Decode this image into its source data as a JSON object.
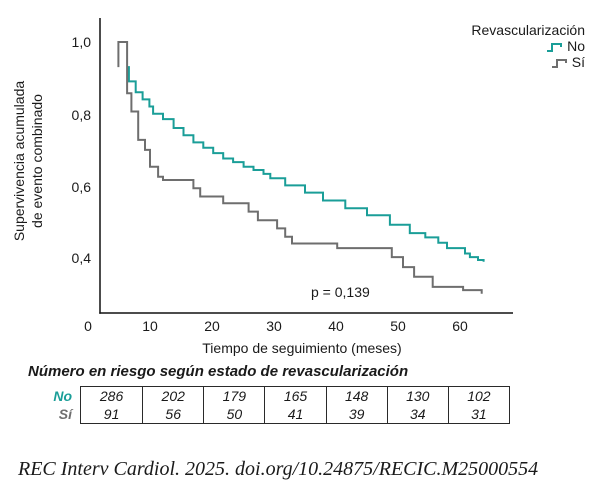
{
  "chart_data": {
    "type": "line",
    "subtype": "kaplan-meier-step",
    "xlabel": "Tiempo de seguimiento (meses)",
    "ylabel": "Supervivencia acumulada de evento combinado",
    "ylabel_lines": [
      "Supervivencia acumulada",
      "de evento combinado"
    ],
    "xlim": [
      0,
      68
    ],
    "ylim": [
      0.24,
      1.0
    ],
    "grid": false,
    "x_ticks": [
      0,
      10,
      20,
      30,
      40,
      50,
      60
    ],
    "x_tick_labels": [
      "0",
      "10",
      "20",
      "30",
      "40",
      "50",
      "60"
    ],
    "y_ticks": [
      1.0,
      0.8,
      0.6,
      0.4
    ],
    "y_tick_labels": [
      "1,0",
      "0,8",
      "0,6",
      "0,4"
    ],
    "legend": {
      "title": "Revascularización",
      "position": "top-right"
    },
    "annotation": "p = 0,139",
    "series": [
      {
        "name": "No",
        "color": "#1A9E98",
        "points": [
          [
            6.4,
            0.93
          ],
          [
            6.6,
            0.93
          ],
          [
            6.6,
            0.89
          ],
          [
            7.7,
            0.89
          ],
          [
            7.7,
            0.86
          ],
          [
            8.8,
            0.86
          ],
          [
            8.8,
            0.84
          ],
          [
            9.9,
            0.84
          ],
          [
            9.9,
            0.82
          ],
          [
            10.5,
            0.82
          ],
          [
            10.5,
            0.8
          ],
          [
            12.1,
            0.8
          ],
          [
            12.1,
            0.785
          ],
          [
            13.8,
            0.785
          ],
          [
            13.8,
            0.76
          ],
          [
            15.4,
            0.76
          ],
          [
            15.4,
            0.74
          ],
          [
            17,
            0.74
          ],
          [
            17,
            0.72
          ],
          [
            18.6,
            0.72
          ],
          [
            18.6,
            0.705
          ],
          [
            20.2,
            0.705
          ],
          [
            20.2,
            0.69
          ],
          [
            21.8,
            0.69
          ],
          [
            21.8,
            0.675
          ],
          [
            23.4,
            0.675
          ],
          [
            23.4,
            0.665
          ],
          [
            25.1,
            0.665
          ],
          [
            25.1,
            0.652
          ],
          [
            26.7,
            0.652
          ],
          [
            26.7,
            0.643
          ],
          [
            28.3,
            0.643
          ],
          [
            28.3,
            0.632
          ],
          [
            29.4,
            0.632
          ],
          [
            29.4,
            0.62
          ],
          [
            31.8,
            0.62
          ],
          [
            31.8,
            0.6
          ],
          [
            35,
            0.6
          ],
          [
            35,
            0.58
          ],
          [
            37.9,
            0.58
          ],
          [
            37.9,
            0.558
          ],
          [
            41.5,
            0.558
          ],
          [
            41.5,
            0.536
          ],
          [
            45,
            0.536
          ],
          [
            45,
            0.517
          ],
          [
            48.7,
            0.517
          ],
          [
            48.7,
            0.49
          ],
          [
            51.9,
            0.49
          ],
          [
            51.9,
            0.467
          ],
          [
            54.4,
            0.467
          ],
          [
            54.4,
            0.455
          ],
          [
            56.5,
            0.455
          ],
          [
            56.5,
            0.44
          ],
          [
            57.9,
            0.44
          ],
          [
            57.9,
            0.425
          ],
          [
            60.8,
            0.425
          ],
          [
            60.8,
            0.41
          ],
          [
            61.6,
            0.41
          ],
          [
            61.6,
            0.4
          ],
          [
            62.9,
            0.4
          ],
          [
            62.9,
            0.392
          ],
          [
            63.8,
            0.392
          ],
          [
            63.8,
            0.387
          ]
        ]
      },
      {
        "name": "Sí",
        "color": "#6E6E6E",
        "points": [
          [
            4.9,
            0.93
          ],
          [
            4.9,
            1.0
          ],
          [
            6.3,
            1.0
          ],
          [
            6.3,
            0.857
          ],
          [
            7,
            0.857
          ],
          [
            7,
            0.806
          ],
          [
            8.1,
            0.806
          ],
          [
            8.1,
            0.727
          ],
          [
            9.2,
            0.727
          ],
          [
            9.2,
            0.699
          ],
          [
            10,
            0.699
          ],
          [
            10,
            0.652
          ],
          [
            11.3,
            0.652
          ],
          [
            11.3,
            0.624
          ],
          [
            12.1,
            0.624
          ],
          [
            12.1,
            0.615
          ],
          [
            17,
            0.615
          ],
          [
            17,
            0.592
          ],
          [
            18.1,
            0.592
          ],
          [
            18.1,
            0.569
          ],
          [
            21.8,
            0.569
          ],
          [
            21.8,
            0.55
          ],
          [
            25.9,
            0.55
          ],
          [
            25.9,
            0.527
          ],
          [
            27.4,
            0.527
          ],
          [
            27.4,
            0.503
          ],
          [
            30.5,
            0.503
          ],
          [
            30.5,
            0.48
          ],
          [
            31.8,
            0.48
          ],
          [
            31.8,
            0.457
          ],
          [
            32.9,
            0.457
          ],
          [
            32.9,
            0.438
          ],
          [
            40.2,
            0.438
          ],
          [
            40.2,
            0.425
          ],
          [
            49,
            0.425
          ],
          [
            49,
            0.4
          ],
          [
            50.8,
            0.4
          ],
          [
            50.8,
            0.372
          ],
          [
            52.6,
            0.372
          ],
          [
            52.6,
            0.345
          ],
          [
            55.6,
            0.345
          ],
          [
            55.6,
            0.317
          ],
          [
            60.5,
            0.317
          ],
          [
            60.5,
            0.308
          ],
          [
            63.5,
            0.308
          ],
          [
            63.5,
            0.298
          ]
        ]
      }
    ]
  },
  "risk_table": {
    "title": "Número en riesgo según estado de revascularización",
    "rows": [
      {
        "label": "No",
        "color": "#1A9E98",
        "values": [
          "286",
          "202",
          "179",
          "165",
          "148",
          "130",
          "102"
        ]
      },
      {
        "label": "Sí",
        "color": "#6E6E6E",
        "values": [
          "91",
          "56",
          "50",
          "41",
          "39",
          "34",
          "31"
        ]
      }
    ]
  },
  "citation": "REC Interv Cardiol. 2025. doi.org/10.24875/RECIC.M25000554"
}
